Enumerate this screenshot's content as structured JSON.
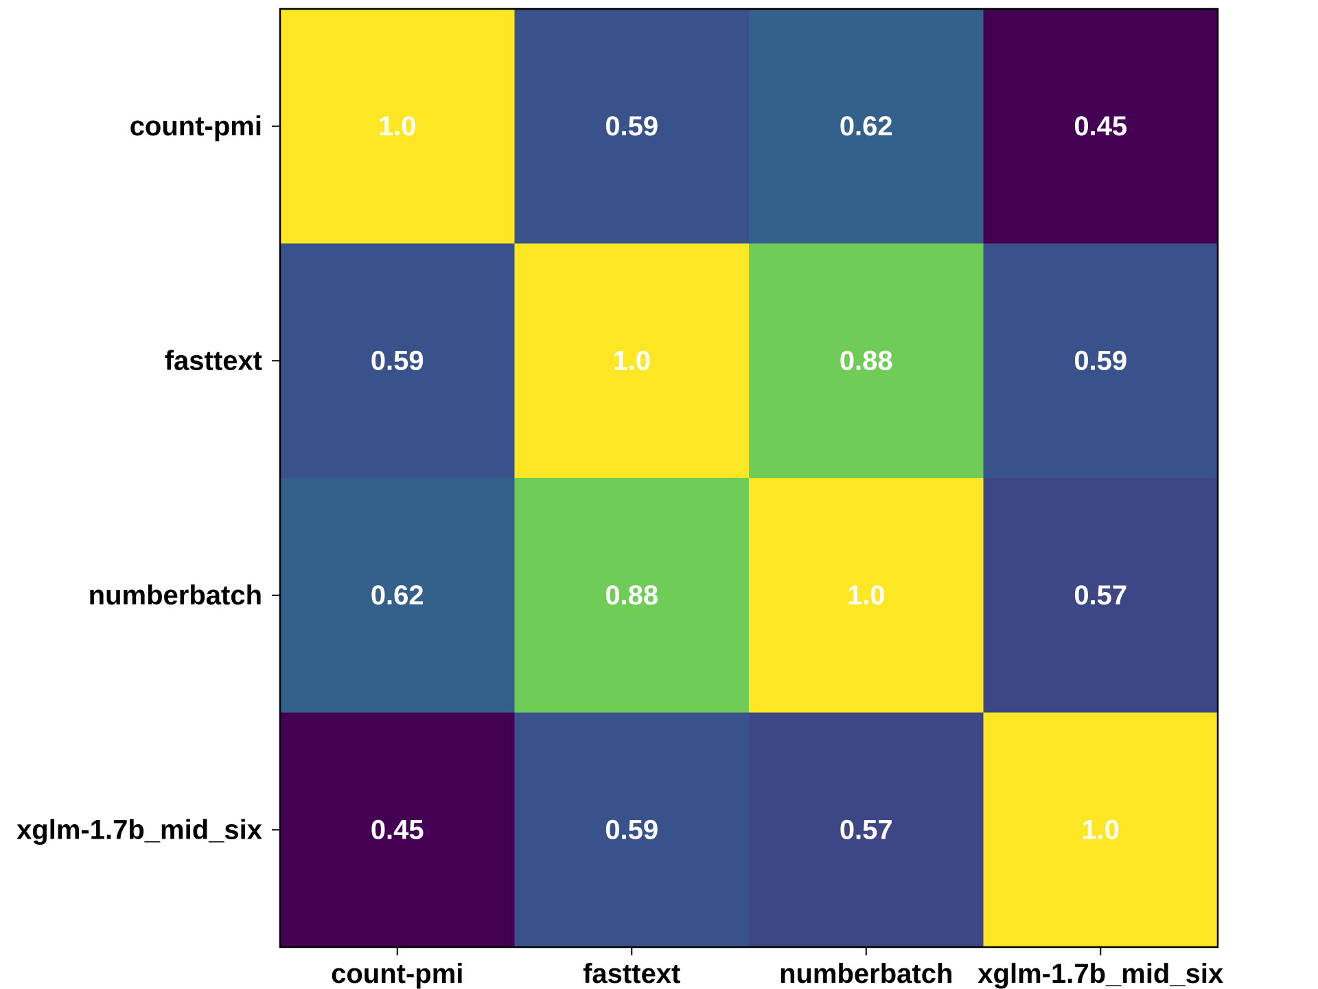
{
  "chart_data": {
    "type": "heatmap",
    "title": "",
    "xlabel": "",
    "ylabel": "",
    "x_categories": [
      "count-pmi",
      "fasttext",
      "numberbatch",
      "xglm-1.7b_mid_six"
    ],
    "y_categories": [
      "count-pmi",
      "fasttext",
      "numberbatch",
      "xglm-1.7b_mid_six"
    ],
    "values": [
      [
        1.0,
        0.59,
        0.62,
        0.45
      ],
      [
        0.59,
        1.0,
        0.88,
        0.59
      ],
      [
        0.62,
        0.88,
        1.0,
        0.57
      ],
      [
        0.45,
        0.59,
        0.57,
        1.0
      ]
    ],
    "value_labels": [
      [
        "1.0",
        "0.59",
        "0.62",
        "0.45"
      ],
      [
        "0.59",
        "1.0",
        "0.88",
        "0.59"
      ],
      [
        "0.62",
        "0.88",
        "1.0",
        "0.57"
      ],
      [
        "0.45",
        "0.59",
        "0.57",
        "1.0"
      ]
    ],
    "colormap": "viridis",
    "color_range": [
      0.45,
      1.0
    ],
    "colorbar": false,
    "grid": false,
    "colors": {
      "cell_text": "#ffffff",
      "tick_text": "#000000",
      "frame": "#000000"
    }
  }
}
